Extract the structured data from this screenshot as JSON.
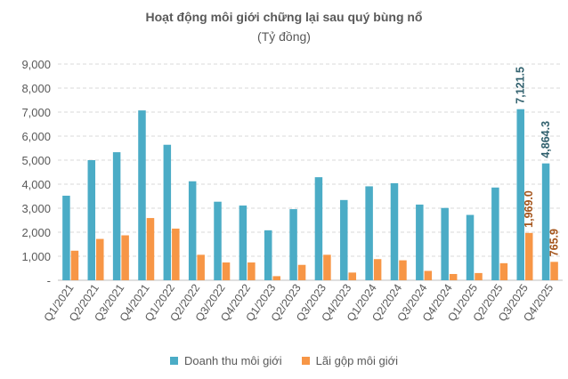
{
  "chart_data": {
    "type": "bar",
    "title": "Hoạt động môi giới chững lại sau quý bùng nổ",
    "subtitle": "(Tỷ đồng)",
    "categories": [
      "Q1/2021",
      "Q2/2021",
      "Q3/2021",
      "Q4/2021",
      "Q1/2022",
      "Q2/2022",
      "Q3/2022",
      "Q4/2022",
      "Q1/2023",
      "Q2/2023",
      "Q3/2023",
      "Q4/2023",
      "Q1/2024",
      "Q2/2024",
      "Q3/2024",
      "Q4/2024",
      "Q1/2025",
      "Q2/2025",
      "Q3/2025",
      "Q4/2025"
    ],
    "series": [
      {
        "name": "Doanh thu môi giới",
        "color": "#4bacc6",
        "label_color": "#31616e",
        "values": [
          3520,
          5000,
          5330,
          7070,
          5640,
          4120,
          3270,
          3110,
          2080,
          2960,
          4290,
          3340,
          3910,
          4040,
          3150,
          3010,
          2720,
          3860,
          7121.5,
          4864.3
        ]
      },
      {
        "name": "Lãi gộp môi giới",
        "color": "#f79646",
        "label_color": "#a5551c",
        "values": [
          1230,
          1720,
          1870,
          2590,
          2150,
          1060,
          740,
          740,
          170,
          640,
          1060,
          320,
          880,
          830,
          390,
          260,
          300,
          710,
          1969.0,
          765.9
        ]
      }
    ],
    "data_labels": [
      {
        "series": 0,
        "index": 18,
        "text": "7,121.5"
      },
      {
        "series": 0,
        "index": 19,
        "text": "4,864.3"
      },
      {
        "series": 1,
        "index": 18,
        "text": "1,969.0"
      },
      {
        "series": 1,
        "index": 19,
        "text": "765.9"
      }
    ],
    "y_ticks": [
      {
        "value": 0,
        "label": "-"
      },
      {
        "value": 1000,
        "label": "1,000"
      },
      {
        "value": 2000,
        "label": "2,000"
      },
      {
        "value": 3000,
        "label": "3,000"
      },
      {
        "value": 4000,
        "label": "4,000"
      },
      {
        "value": 5000,
        "label": "5,000"
      },
      {
        "value": 6000,
        "label": "6,000"
      },
      {
        "value": 7000,
        "label": "7,000"
      },
      {
        "value": 8000,
        "label": "8,000"
      },
      {
        "value": 9000,
        "label": "9,000"
      }
    ],
    "ylim": [
      0,
      9000
    ],
    "grid": true,
    "legend_position": "bottom"
  }
}
